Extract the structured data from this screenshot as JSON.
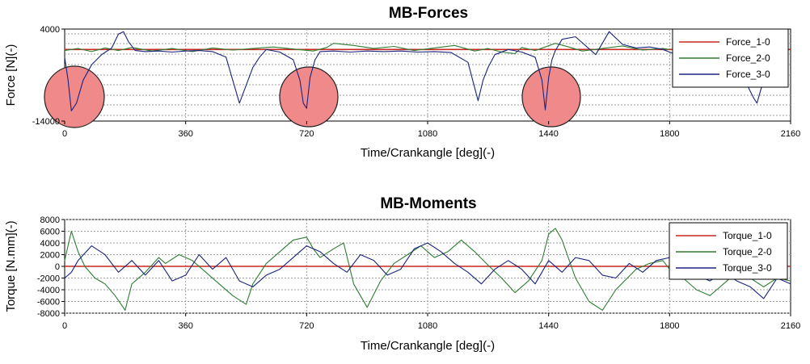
{
  "chart_data": [
    {
      "type": "line",
      "title": "MB-Forces",
      "xlabel": "Time/Crankangle [deg](-)",
      "ylabel": "Force [N](-)",
      "xlim": [
        0,
        2160
      ],
      "ylim": [
        -14000,
        4000
      ],
      "xticks": [
        "0",
        "360",
        "720",
        "1080",
        "1440",
        "1800",
        "2160"
      ],
      "yticks": [
        "4000",
        "-14000"
      ],
      "grid": true,
      "legend_position": "top-right",
      "series": [
        {
          "name": "Force_1-0",
          "color": "#c8281e",
          "x": [
            0,
            2160
          ],
          "y": [
            0,
            0
          ]
        },
        {
          "name": "Force_2-0",
          "color": "#2e7d32",
          "x": [
            0,
            40,
            80,
            120,
            160,
            200,
            260,
            320,
            380,
            440,
            500,
            560,
            620,
            680,
            740,
            780,
            800,
            860,
            920,
            980,
            1040,
            1100,
            1160,
            1220,
            1260,
            1300,
            1340,
            1360,
            1400,
            1460,
            1500,
            1540,
            1600,
            1660,
            1720,
            1780,
            1800
          ],
          "y": [
            -200,
            200,
            -400,
            300,
            -200,
            400,
            -300,
            200,
            -400,
            300,
            -100,
            200,
            500,
            100,
            -300,
            400,
            1200,
            800,
            200,
            600,
            -200,
            300,
            800,
            -300,
            200,
            -500,
            -800,
            400,
            -200,
            1200,
            500,
            -300,
            200,
            700,
            -100,
            200,
            0
          ]
        },
        {
          "name": "Force_3-0",
          "color": "#1a237e",
          "x": [
            0,
            10,
            20,
            35,
            55,
            80,
            110,
            140,
            160,
            175,
            190,
            210,
            240,
            280,
            320,
            360,
            400,
            440,
            480,
            500,
            520,
            540,
            560,
            580,
            600,
            640,
            680,
            700,
            710,
            720,
            730,
            745,
            760,
            800,
            850,
            900,
            950,
            1000,
            1050,
            1100,
            1150,
            1200,
            1230,
            1245,
            1260,
            1280,
            1320,
            1360,
            1400,
            1420,
            1430,
            1440,
            1450,
            1460,
            1480,
            1520,
            1580,
            1620,
            1660,
            1700,
            1740,
            1780,
            1800,
            1820,
            1860,
            1900,
            1960,
            2020,
            2050,
            2060,
            2075,
            2100,
            2140
          ],
          "y": [
            -1500,
            -6000,
            -12000,
            -10500,
            -6000,
            -3000,
            -1000,
            300,
            3000,
            3500,
            1500,
            -200,
            -400,
            -300,
            -500,
            -300,
            -200,
            -400,
            -1500,
            -6000,
            -10500,
            -7000,
            -3500,
            -1500,
            0,
            -500,
            -2000,
            -6000,
            -10500,
            -11500,
            -5500,
            -2000,
            -400,
            -300,
            -500,
            -300,
            -400,
            -300,
            -500,
            -400,
            -600,
            -2500,
            -10000,
            -6000,
            -3500,
            -1000,
            0,
            -500,
            -1500,
            -6000,
            -11800,
            -5500,
            -2000,
            -200,
            2000,
            2500,
            -1000,
            3500,
            1000,
            300,
            500,
            0,
            -500,
            -1000,
            -1500,
            -2500,
            -3500,
            -5500,
            -9500,
            -10500,
            -7000,
            -4000,
            -3000
          ]
        }
      ]
    },
    {
      "type": "line",
      "title": "MB-Moments",
      "xlabel": "Time/Crankangle [deg](-)",
      "ylabel": "Torque [N.mm](-)",
      "xlim": [
        0,
        2160
      ],
      "ylim": [
        -8000,
        8000
      ],
      "xticks": [
        "0",
        "360",
        "720",
        "1080",
        "1440",
        "1800",
        "2160"
      ],
      "yticks": [
        "8000",
        "6000",
        "4000",
        "2000",
        "0",
        "-2000",
        "-4000",
        "-6000",
        "-8000"
      ],
      "grid": true,
      "legend_position": "top-right",
      "series": [
        {
          "name": "Torque_1-0",
          "color": "#c8281e",
          "x": [
            0,
            2160
          ],
          "y": [
            0,
            0
          ]
        },
        {
          "name": "Torque_2-0",
          "color": "#2e7d32",
          "x": [
            0,
            20,
            40,
            60,
            90,
            120,
            150,
            180,
            200,
            240,
            280,
            300,
            340,
            380,
            420,
            460,
            500,
            540,
            560,
            600,
            640,
            680,
            720,
            740,
            760,
            800,
            830,
            860,
            900,
            940,
            980,
            1020,
            1060,
            1100,
            1140,
            1180,
            1220,
            1260,
            1300,
            1340,
            1380,
            1420,
            1440,
            1460,
            1480,
            1520,
            1560,
            1600,
            1640,
            1700,
            1740,
            1780,
            1800,
            1840,
            1880,
            1920,
            1960,
            2000,
            2040,
            2080,
            2120,
            2160
          ],
          "y": [
            1000,
            6000,
            2500,
            0,
            -2000,
            -3000,
            -5000,
            -7500,
            -3000,
            -1000,
            1500,
            500,
            2000,
            1000,
            -1000,
            -3000,
            -5000,
            -6500,
            -3000,
            500,
            2500,
            4500,
            5000,
            3000,
            1500,
            3000,
            4000,
            -3000,
            -7000,
            -2500,
            500,
            2000,
            3500,
            1500,
            2500,
            4500,
            2500,
            200,
            -2000,
            -4500,
            -2500,
            1000,
            5500,
            6500,
            4500,
            -2000,
            -6000,
            -7500,
            -4000,
            -500,
            500,
            1000,
            -500,
            -2000,
            -4000,
            -5000,
            -3000,
            -1000,
            -2000,
            -3500,
            -2000,
            -2500
          ]
        },
        {
          "name": "Torque_3-0",
          "color": "#1a237e",
          "x": [
            0,
            20,
            40,
            80,
            120,
            160,
            200,
            240,
            280,
            320,
            360,
            400,
            440,
            480,
            520,
            560,
            600,
            640,
            680,
            720,
            760,
            800,
            840,
            880,
            920,
            960,
            1000,
            1040,
            1080,
            1120,
            1160,
            1200,
            1240,
            1280,
            1320,
            1360,
            1400,
            1440,
            1480,
            1520,
            1560,
            1600,
            1640,
            1680,
            1720,
            1760,
            1800,
            1840,
            1880,
            1920,
            1960,
            2000,
            2040,
            2080,
            2120,
            2160
          ],
          "y": [
            -2000,
            -1000,
            1000,
            3500,
            2000,
            -1000,
            1000,
            -1500,
            1000,
            -2500,
            -1500,
            2000,
            -500,
            1500,
            -2500,
            -3500,
            -1500,
            -500,
            1500,
            3500,
            2500,
            500,
            -1000,
            2000,
            1000,
            -1500,
            -500,
            3000,
            4000,
            2500,
            500,
            -1000,
            -3000,
            -500,
            1000,
            -500,
            -3000,
            1000,
            -1000,
            1500,
            1000,
            -1500,
            -2000,
            500,
            -1000,
            1000,
            1500,
            -500,
            -1500,
            -2500,
            -1000,
            -2500,
            -3500,
            -5500,
            -2000,
            -3000
          ]
        }
      ]
    }
  ]
}
